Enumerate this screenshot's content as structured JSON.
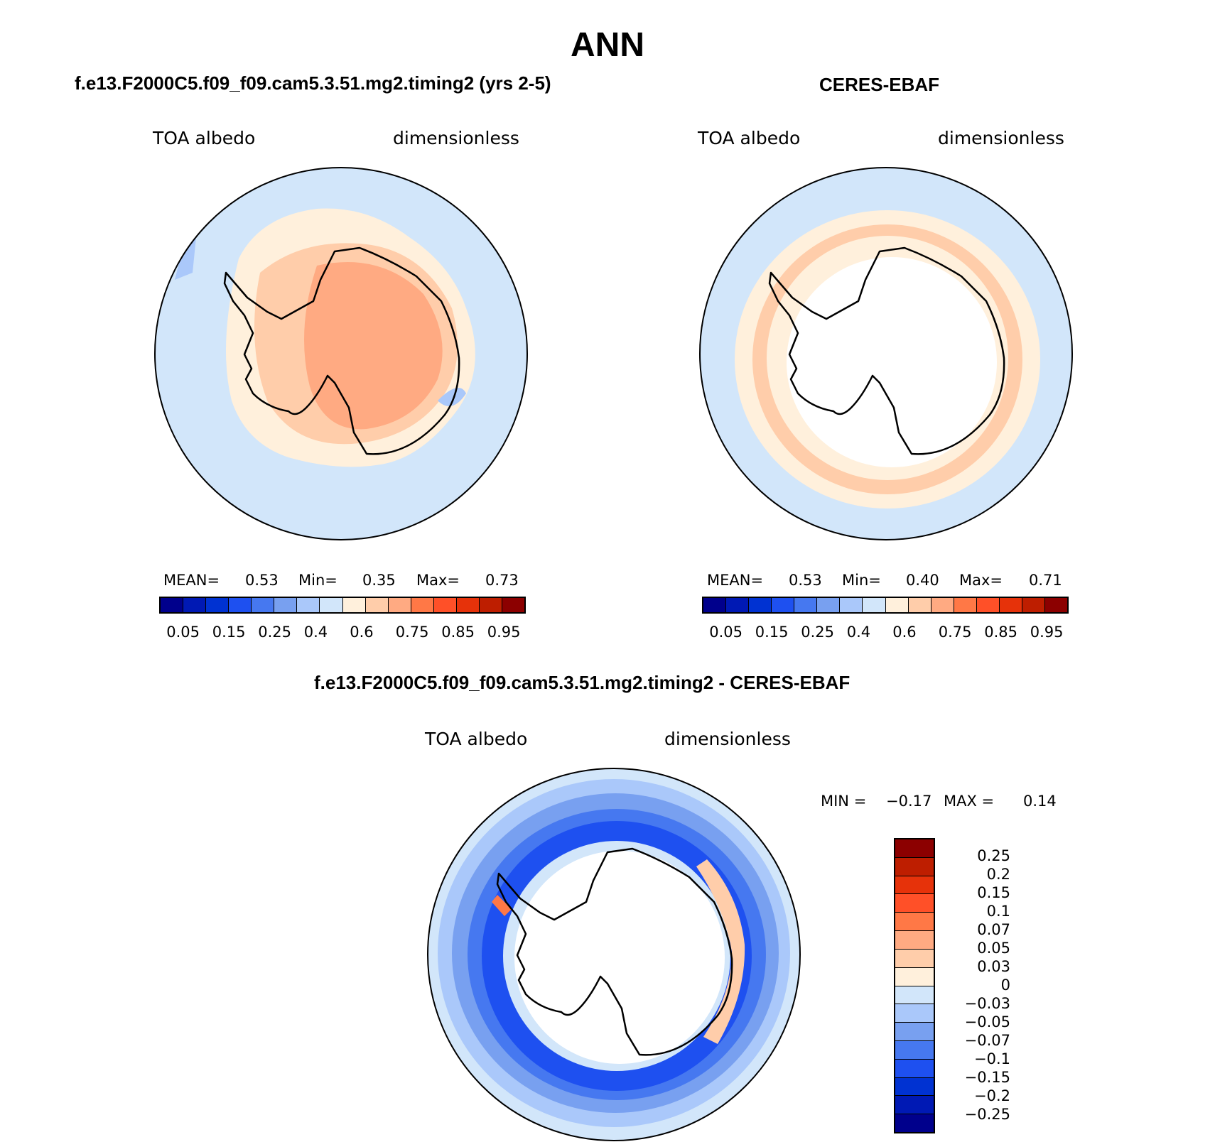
{
  "title": "ANN",
  "panels": [
    {
      "title": "f.e13.F2000C5.f09_f09.cam5.3.51.mg2.timing2 (yrs 2-5)",
      "variable": "TOA albedo",
      "units": "dimensionless",
      "stats": {
        "mean_label": "MEAN=",
        "mean": "0.53",
        "min_label": "Min=",
        "min": "0.35",
        "max_label": "Max=",
        "max": "0.73"
      }
    },
    {
      "title": "CERES-EBAF",
      "variable": "TOA albedo",
      "units": "dimensionless",
      "stats": {
        "mean_label": "MEAN=",
        "mean": "0.53",
        "min_label": "Min=",
        "min": "0.40",
        "max_label": "Max=",
        "max": "0.71"
      }
    },
    {
      "title": "f.e13.F2000C5.f09_f09.cam5.3.51.mg2.timing2 - CERES-EBAF",
      "variable": "TOA albedo",
      "units": "dimensionless",
      "stats": {
        "min_label": "MIN =",
        "min": "−0.17",
        "max_label": "MAX =",
        "max": "0.14"
      }
    }
  ],
  "colorbar_main": {
    "colors": [
      "#00008c",
      "#0019b4",
      "#0032d2",
      "#1e50f0",
      "#4678f0",
      "#78a0f0",
      "#aac8fa",
      "#d2e6fa",
      "#fff0dc",
      "#ffcdaa",
      "#ffaa82",
      "#ff7846",
      "#ff5028",
      "#e6320a",
      "#be1e00",
      "#8c0000"
    ],
    "labels": [
      "0.05",
      "0.15",
      "0.25",
      "0.4",
      "0.6",
      "0.75",
      "0.85",
      "0.95"
    ]
  },
  "colorbar_diff": {
    "colors": [
      "#8c0000",
      "#be1e00",
      "#e6320a",
      "#ff5028",
      "#ff7846",
      "#ffaa82",
      "#ffcdaa",
      "#fff0dc",
      "#d2e6fa",
      "#aac8fa",
      "#78a0f0",
      "#4678f0",
      "#1e50f0",
      "#0032d2",
      "#0019b4",
      "#00008c"
    ],
    "labels": [
      "0.25",
      "0.2",
      "0.15",
      "0.1",
      "0.07",
      "0.05",
      "0.03",
      "0",
      "−0.03",
      "−0.05",
      "−0.07",
      "−0.1",
      "−0.15",
      "−0.2",
      "−0.25"
    ]
  }
}
